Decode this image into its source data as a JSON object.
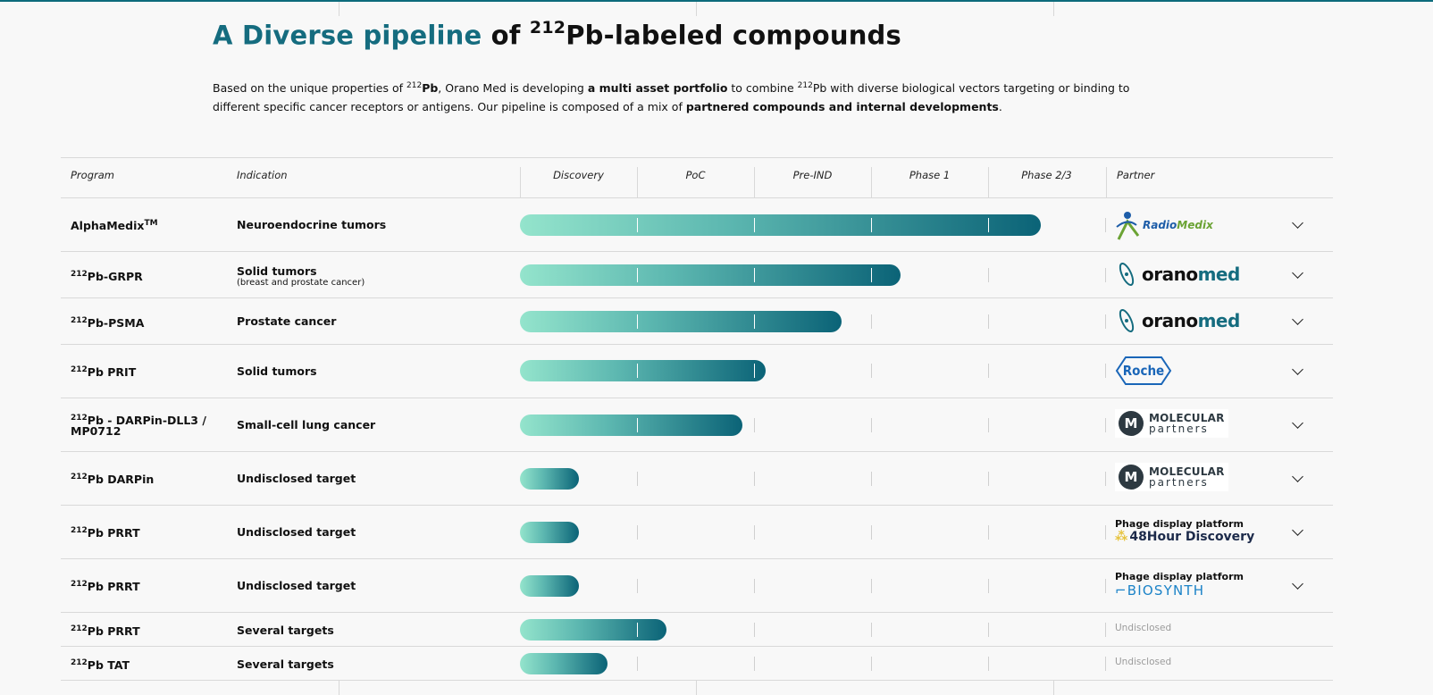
{
  "page": {
    "title_accent": "A Diverse pipeline",
    "title_of": "of",
    "title_sup": "212",
    "title_rest": "Pb-labeled compounds",
    "intro": {
      "t1": "Based on the unique properties of ",
      "sup1": "212",
      "b1": "Pb",
      "t2": ", Orano Med is developing ",
      "b2": "a multi asset portfolio",
      "t3": " to combine ",
      "sup2": "212",
      "t4": "Pb with diverse biological vectors targeting or binding to different specific cancer receptors or antigens. Our pipeline is composed of a mix of ",
      "b3": "partnered compounds and internal developments",
      "t5": "."
    }
  },
  "table": {
    "headers": {
      "program": "Program",
      "indication": "Indication",
      "phases": [
        "Discovery",
        "PoC",
        "Pre-IND",
        "Phase 1",
        "Phase 2/3"
      ],
      "partner": "Partner"
    },
    "rows": [
      {
        "sup": "",
        "program": "AlphaMedix",
        "tm": "TM",
        "indication": "Neuroendocrine tumors",
        "sub": "",
        "progress": 0.89,
        "partner": "RadioMedix"
      },
      {
        "sup": "212",
        "program": "Pb-GRPR",
        "indication": "Solid tumors",
        "sub": "(breast and prostate cancer)",
        "progress": 0.65,
        "partner": "oranomed"
      },
      {
        "sup": "212",
        "program": "Pb-PSMA",
        "indication": "Prostate cancer",
        "sub": "",
        "progress": 0.55,
        "partner": "oranomed"
      },
      {
        "sup": "212",
        "program": "Pb PRIT",
        "indication": "Solid tumors",
        "sub": "",
        "progress": 0.42,
        "partner": "Roche"
      },
      {
        "sup": "212",
        "program": "Pb - DARPin-DLL3 /",
        "program2": "MP0712",
        "indication": "Small-cell lung cancer",
        "sub": "",
        "progress": 0.38,
        "partner": "MOLECULAR partners"
      },
      {
        "sup": "212",
        "program": "Pb DARPin",
        "indication": "Undisclosed target",
        "sub": "",
        "progress": 0.1,
        "partner": "MOLECULAR partners"
      },
      {
        "sup": "212",
        "program": "Pb PRRT",
        "indication": "Undisclosed target",
        "sub": "",
        "progress": 0.1,
        "partner_label": "Phage display platform",
        "partner": "48Hour Discovery"
      },
      {
        "sup": "212",
        "program": "Pb PRRT",
        "indication": "Undisclosed target",
        "sub": "",
        "progress": 0.1,
        "partner_label": "Phage display platform",
        "partner": "BIOSYNTH"
      },
      {
        "sup": "212",
        "program": "Pb PRRT",
        "indication": "Several targets",
        "sub": "",
        "progress": 0.25,
        "partner": "Undisclosed"
      },
      {
        "sup": "212",
        "program": "Pb TAT",
        "indication": "Several targets",
        "sub": "",
        "progress": 0.15,
        "partner": "Undisclosed"
      }
    ]
  },
  "logos": {
    "radiomedix_a": "Radio",
    "radiomedix_b": "Medix",
    "oranomed_a": "orano",
    "oranomed_b": "med",
    "roche": "Roche",
    "mp_top": "MOLECULAR",
    "mp_bottom": "partners",
    "discovery": "48Hour Discovery",
    "biosynth": "BIOSYNTH"
  },
  "colors": {
    "accent": "#156c7f",
    "bar_start": "#94e4cc",
    "bar_end": "#0b6377"
  }
}
